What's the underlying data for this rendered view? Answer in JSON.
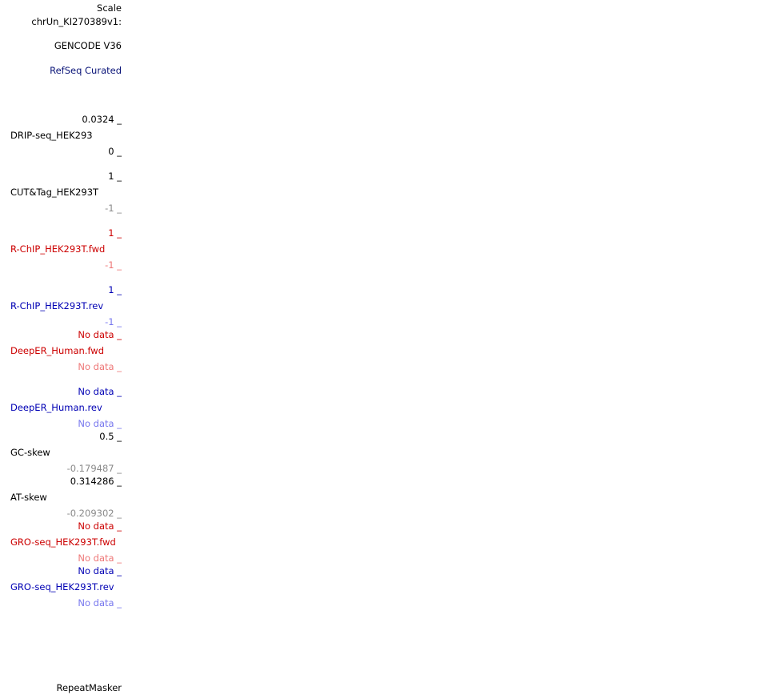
{
  "colors": {
    "black": "#000000",
    "navy": "#0a1478",
    "blue": "#0000b4",
    "red": "#cc0000",
    "gray": "#8a8a8a",
    "pink": "#ee7777",
    "lightblue": "#7777ee"
  },
  "header": {
    "scale": "Scale",
    "chrom": "chrUn_KI270389v1:"
  },
  "tracks": {
    "gencode": "GENCODE V36",
    "refseq": "RefSeq Curated",
    "drip": {
      "max": "0.0324 _",
      "name": "DRIP-seq_HEK293",
      "min": "0 _"
    },
    "cuttag": {
      "max": "1 _",
      "name": "CUT&Tag_HEK293T",
      "min": "-1 _"
    },
    "rchip_fwd": {
      "max": "1 _",
      "name": "R-ChIP_HEK293T.fwd",
      "min": "-1 _"
    },
    "rchip_rev": {
      "max": "1 _",
      "name": "R-ChIP_HEK293T.rev",
      "min": "-1 _"
    },
    "deeper_fwd": {
      "max": "No data _",
      "name": "DeepER_Human.fwd",
      "min": "No data _"
    },
    "deeper_rev": {
      "max": "No data _",
      "name": "DeepER_Human.rev",
      "min": "No data _"
    },
    "gc_skew": {
      "max": "0.5 _",
      "name": "GC-skew",
      "min": "-0.179487 _"
    },
    "at_skew": {
      "max": "0.314286 _",
      "name": "AT-skew",
      "min": "-0.209302 _"
    },
    "gro_fwd": {
      "max": "No data _",
      "name": "GRO-seq_HEK293T.fwd",
      "min": "No data _"
    },
    "gro_rev": {
      "max": "No data _",
      "name": "GRO-seq_HEK293T.rev",
      "min": "No data _"
    },
    "repeatmasker": "RepeatMasker"
  }
}
